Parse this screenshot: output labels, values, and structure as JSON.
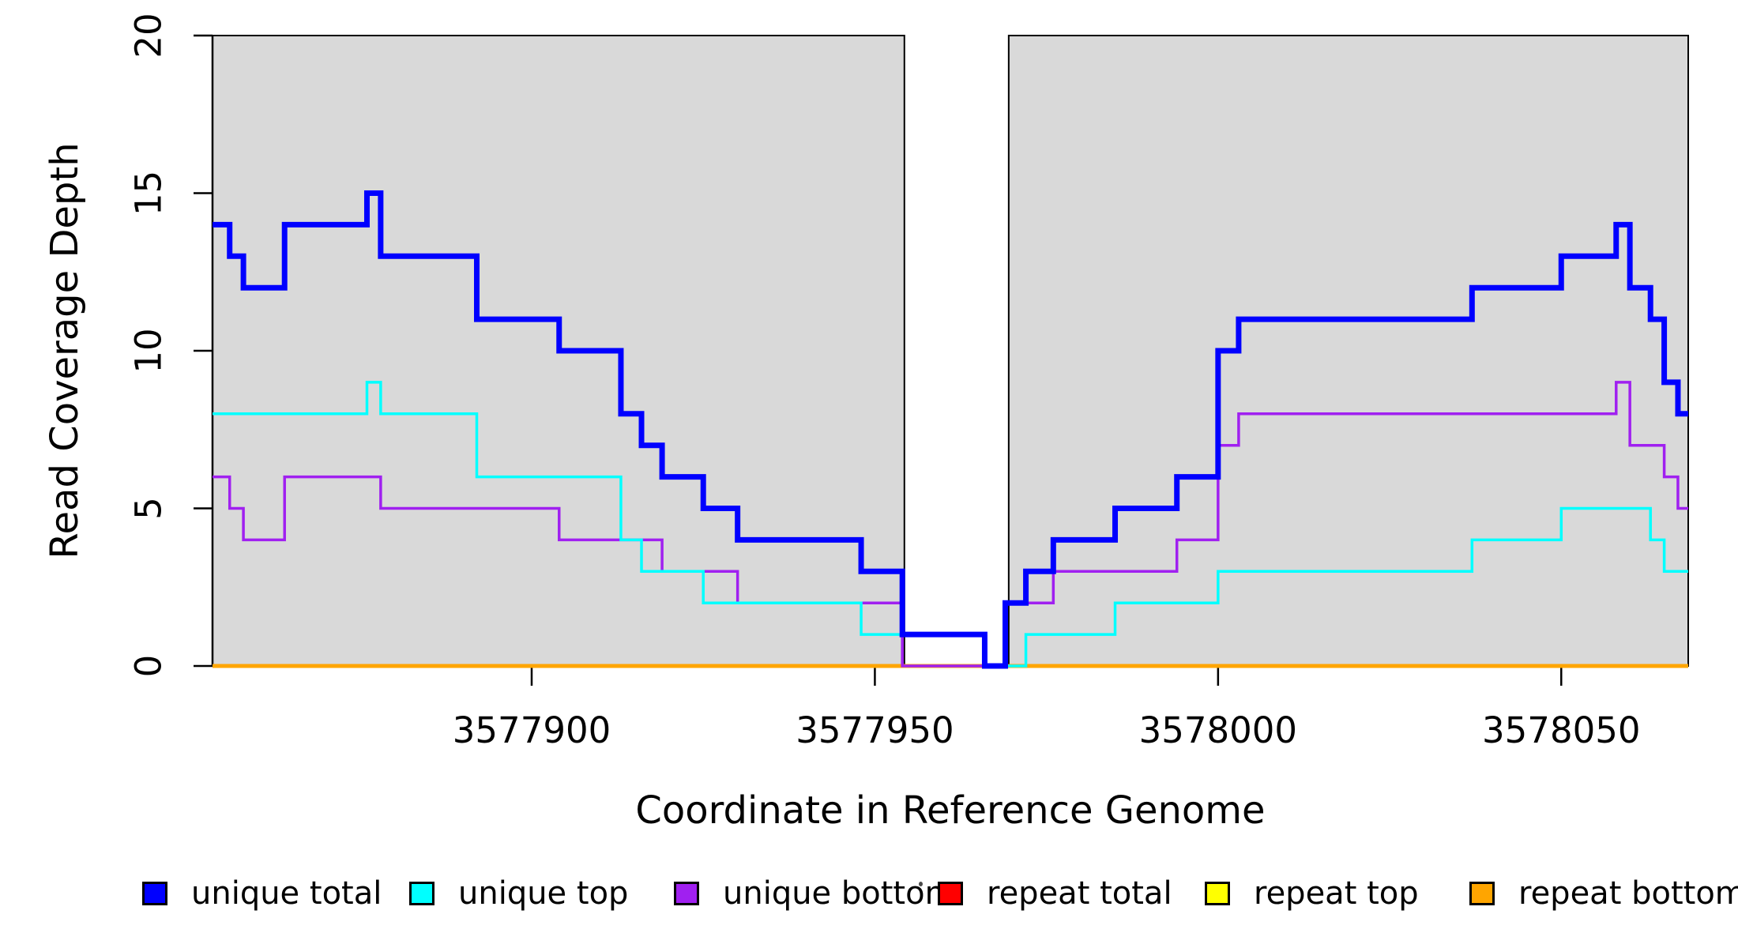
{
  "figure": {
    "background": "#ffffff",
    "shaded_region_color": "#d9d9d9",
    "axis_color": "#000000",
    "text_color": "#000000"
  },
  "chart_data": {
    "type": "line",
    "subtype": "step-post",
    "title": "",
    "xlabel": "Coordinate in Reference Genome",
    "ylabel": "Read Coverage Depth",
    "xlim": [
      3577853.5,
      3578068.5
    ],
    "ylim": [
      0,
      20
    ],
    "x_ticks": [
      3577900,
      3577950,
      3578000,
      3578050
    ],
    "y_ticks": [
      0,
      5,
      10,
      15,
      20
    ],
    "grid": false,
    "legend_position": "bottom",
    "shaded_x_ranges": [
      [
        3577853.5,
        3577954.3
      ],
      [
        3577969.5,
        3578068.5
      ]
    ],
    "series": [
      {
        "name": "repeat total",
        "color": "#ff0000",
        "line_width": 5,
        "steps": [
          [
            3577853.5,
            0
          ]
        ]
      },
      {
        "name": "repeat top",
        "color": "#ffff00",
        "line_width": 4,
        "steps": [
          [
            3577853.5,
            0
          ]
        ]
      },
      {
        "name": "repeat bottom",
        "color": "#ffa500",
        "line_width": 5,
        "steps": [
          [
            3577853.5,
            0
          ]
        ]
      },
      {
        "name": "unique bottom",
        "color": "#a020f0",
        "line_width": 3.5,
        "steps": [
          [
            3577853.5,
            6
          ],
          [
            3577856,
            5
          ],
          [
            3577858,
            4
          ],
          [
            3577864,
            6
          ],
          [
            3577878,
            5
          ],
          [
            3577904,
            4
          ],
          [
            3577919,
            3
          ],
          [
            3577930,
            2
          ],
          [
            3577954,
            0
          ],
          [
            3577969,
            2
          ],
          [
            3577976,
            3
          ],
          [
            3577994,
            4
          ],
          [
            3578000,
            7
          ],
          [
            3578003,
            8
          ],
          [
            3578058,
            9
          ],
          [
            3578060,
            7
          ],
          [
            3578065,
            6
          ],
          [
            3578067,
            5
          ]
        ]
      },
      {
        "name": "unique top",
        "color": "#00ffff",
        "line_width": 3.5,
        "steps": [
          [
            3577853.5,
            8
          ],
          [
            3577876,
            9
          ],
          [
            3577878,
            8
          ],
          [
            3577892,
            6
          ],
          [
            3577913,
            4
          ],
          [
            3577916,
            3
          ],
          [
            3577925,
            2
          ],
          [
            3577948,
            1
          ],
          [
            3577966,
            0
          ],
          [
            3577972,
            1
          ],
          [
            3577985,
            2
          ],
          [
            3578000,
            3
          ],
          [
            3578037,
            4
          ],
          [
            3578050,
            5
          ],
          [
            3578063,
            4
          ],
          [
            3578065,
            3
          ]
        ]
      },
      {
        "name": "unique total",
        "color": "#0000ff",
        "line_width": 7,
        "steps": [
          [
            3577853.5,
            14
          ],
          [
            3577856,
            13
          ],
          [
            3577858,
            12
          ],
          [
            3577864,
            14
          ],
          [
            3577876,
            15
          ],
          [
            3577878,
            13
          ],
          [
            3577892,
            11
          ],
          [
            3577904,
            10
          ],
          [
            3577913,
            8
          ],
          [
            3577916,
            7
          ],
          [
            3577919,
            6
          ],
          [
            3577925,
            5
          ],
          [
            3577930,
            4
          ],
          [
            3577948,
            3
          ],
          [
            3577954,
            1
          ],
          [
            3577966,
            0
          ],
          [
            3577969,
            2
          ],
          [
            3577972,
            3
          ],
          [
            3577976,
            4
          ],
          [
            3577985,
            5
          ],
          [
            3577994,
            6
          ],
          [
            3578000,
            10
          ],
          [
            3578003,
            11
          ],
          [
            3578037,
            12
          ],
          [
            3578050,
            13
          ],
          [
            3578058,
            14
          ],
          [
            3578060,
            12
          ],
          [
            3578063,
            11
          ],
          [
            3578065,
            9
          ],
          [
            3578067,
            8
          ]
        ]
      }
    ],
    "legend": [
      {
        "label": "unique total",
        "color": "#0000ff"
      },
      {
        "label": "unique top",
        "color": "#00ffff"
      },
      {
        "label": "unique bottom",
        "color": "#a020f0"
      },
      {
        "label": "repeat total",
        "color": "#ff0000"
      },
      {
        "label": "repeat top",
        "color": "#ffff00"
      },
      {
        "label": "repeat bottom",
        "color": "#ffa500"
      }
    ]
  }
}
